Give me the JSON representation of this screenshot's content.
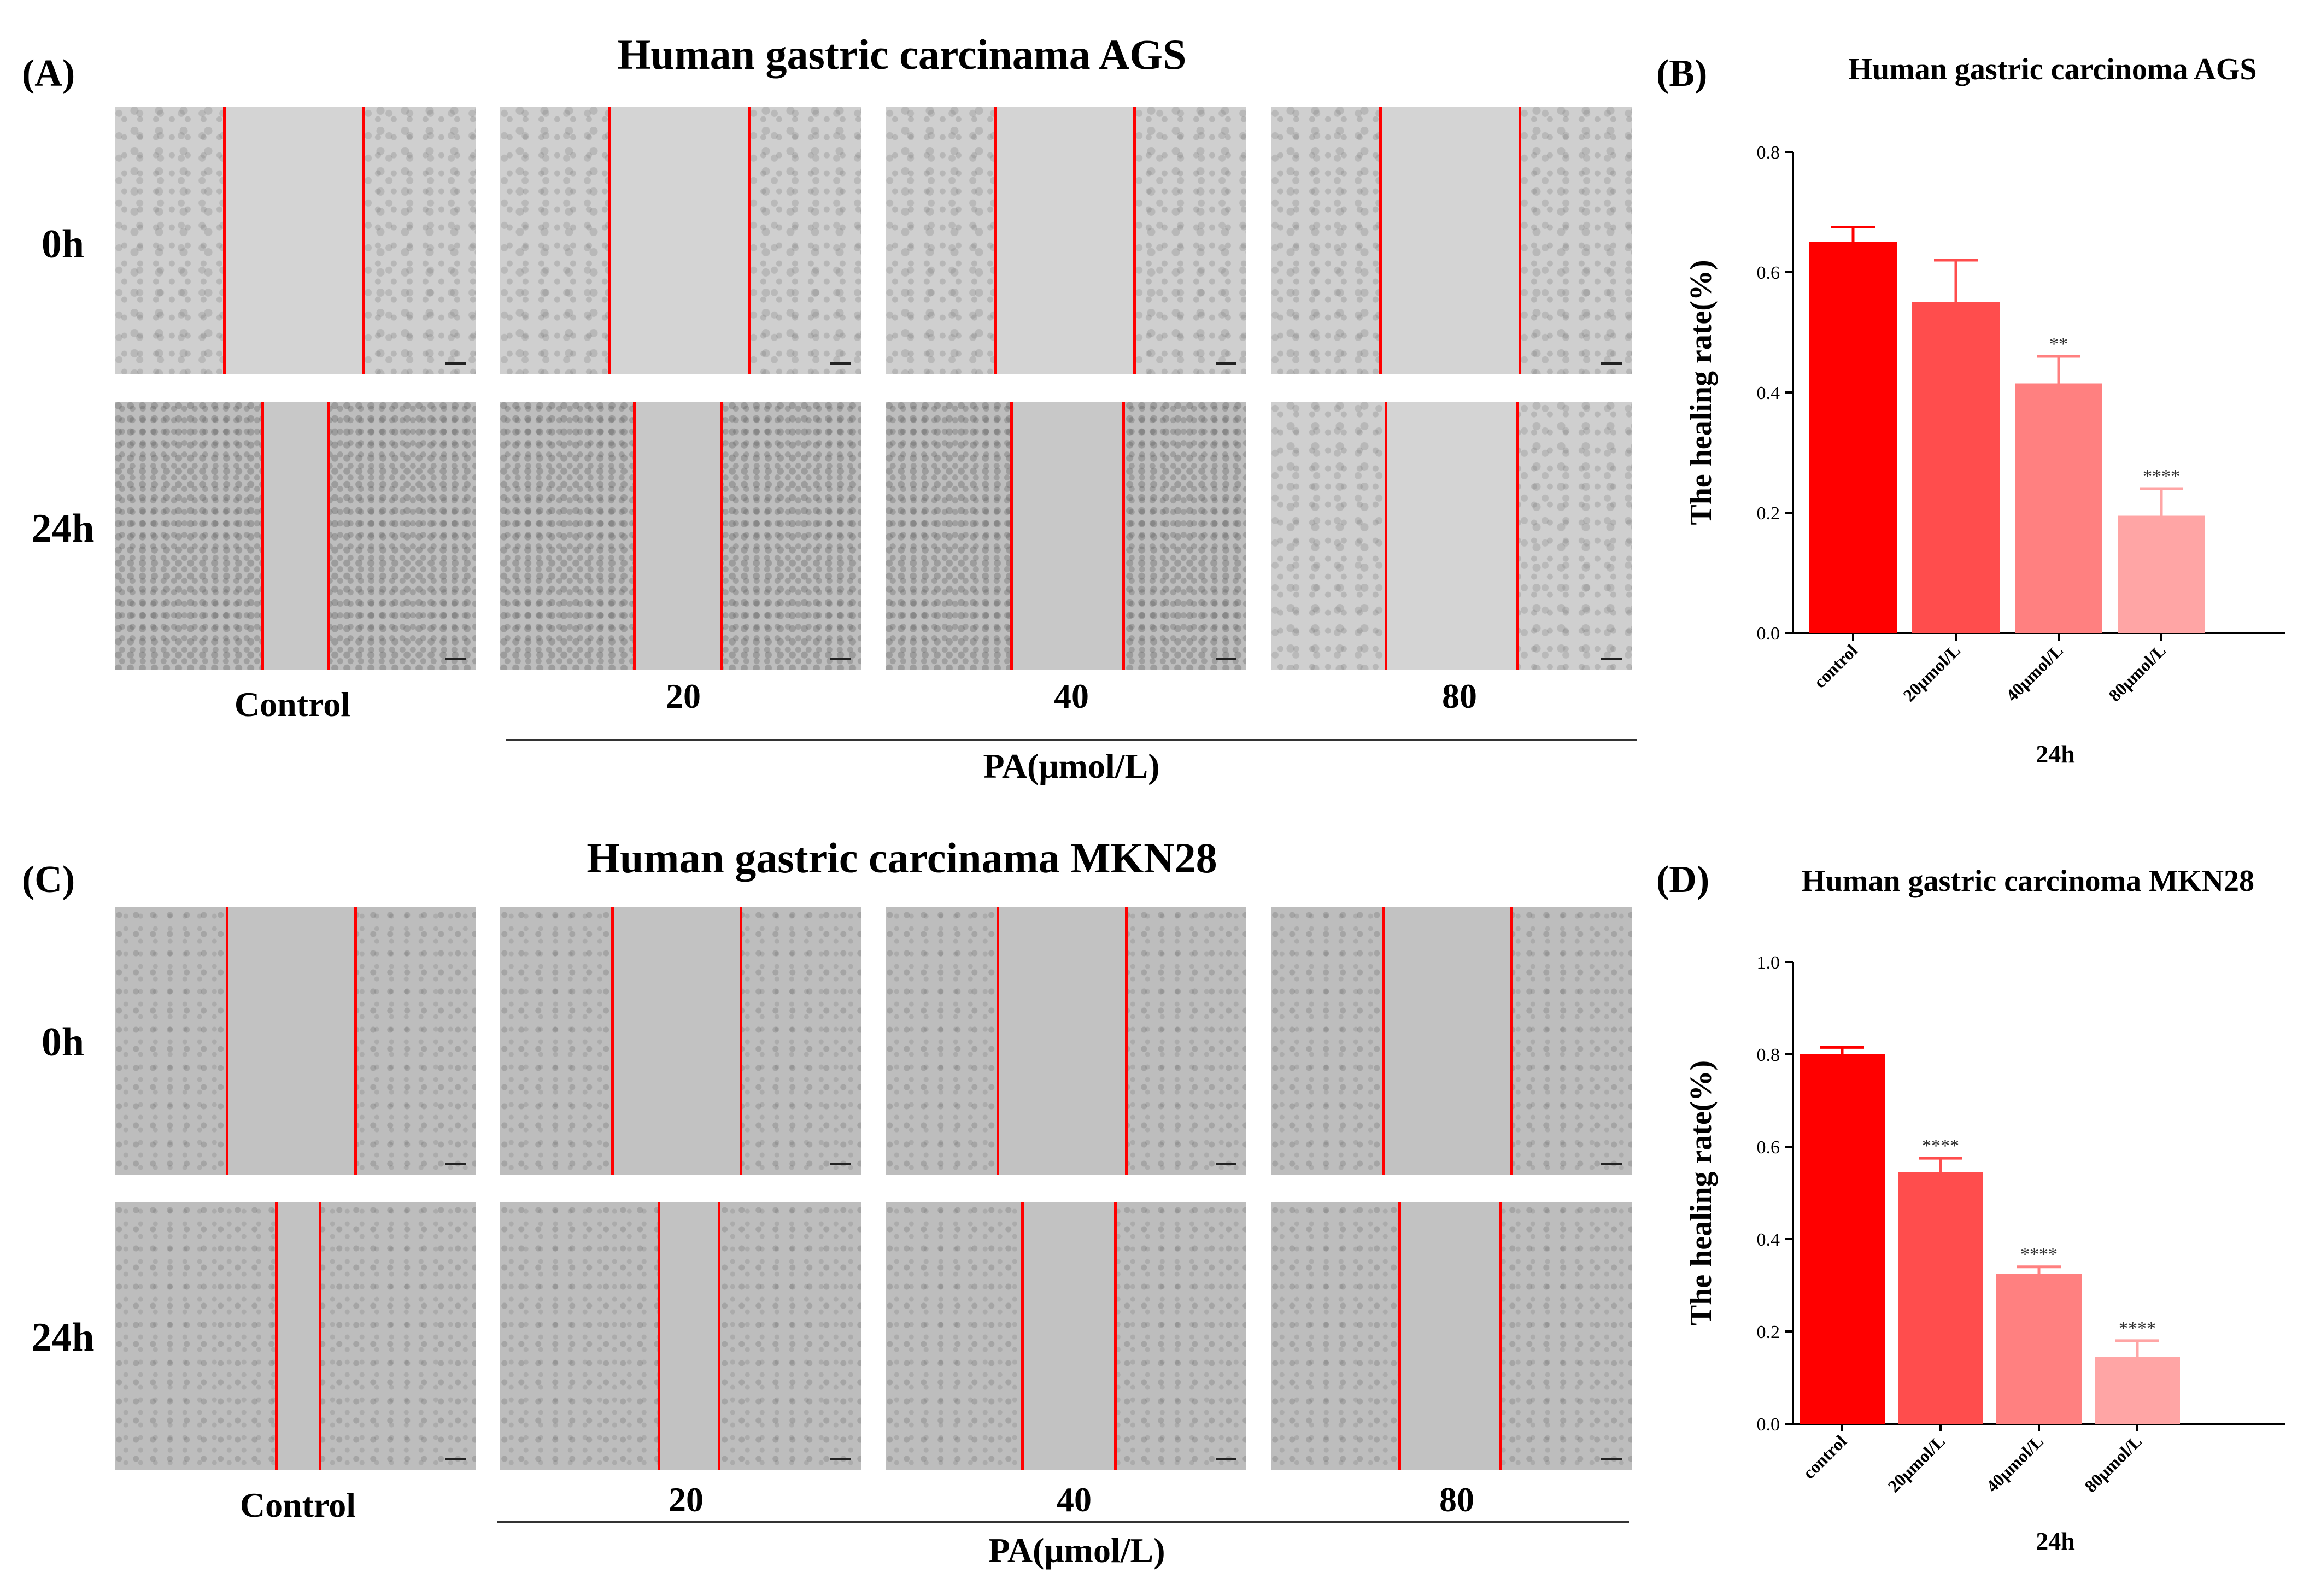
{
  "panelA": {
    "letter": "(A)",
    "title": "Human gastric carcinama AGS",
    "rows": [
      "0h",
      "24h"
    ],
    "columns": [
      "Control",
      "20",
      "40",
      "80"
    ],
    "axis_label": "PA(μmol/L)"
  },
  "panelC": {
    "letter": "(C)",
    "title": "Human gastric carcinama MKN28",
    "rows": [
      "0h",
      "24h"
    ],
    "columns": [
      "Control",
      "20",
      "40",
      "80"
    ],
    "axis_label": "PA(μmol/L)"
  },
  "panelB": {
    "letter": "(B)"
  },
  "panelD": {
    "letter": "(D)"
  },
  "colors": {
    "bar1": "#ff0000",
    "bar2": "#ff4d4d",
    "bar3": "#ff8080",
    "bar4": "#ffa5a5",
    "scratch_line": "#ff0000"
  },
  "chart_data": [
    {
      "type": "bar",
      "title": "Human gastric carcinoma AGS",
      "categories": [
        "control",
        "20μmol/L",
        "40μmol/L",
        "80μmol/L"
      ],
      "values": [
        0.65,
        0.55,
        0.415,
        0.195
      ],
      "errors": [
        0.025,
        0.07,
        0.045,
        0.045
      ],
      "significance": [
        "",
        "",
        "**",
        "****"
      ],
      "xlabel": "24h",
      "ylabel": "The healing rate(%)",
      "ylim": [
        0,
        0.8
      ],
      "yticks": [
        "0.0",
        "0.2",
        "0.4",
        "0.6",
        "0.8"
      ]
    },
    {
      "type": "bar",
      "title": "Human gastric carcinoma MKN28",
      "categories": [
        "control",
        "20μmol/L",
        "40μmol/L",
        "80μmol/L"
      ],
      "values": [
        0.8,
        0.545,
        0.325,
        0.145
      ],
      "errors": [
        0.015,
        0.03,
        0.015,
        0.035
      ],
      "significance": [
        "",
        "****",
        "****",
        "****"
      ],
      "xlabel": "24h",
      "ylabel": "The healing rate(%)",
      "ylim": [
        0,
        1.0
      ],
      "yticks": [
        "0.0",
        "0.2",
        "0.4",
        "0.6",
        "0.8",
        "1.0"
      ]
    }
  ]
}
